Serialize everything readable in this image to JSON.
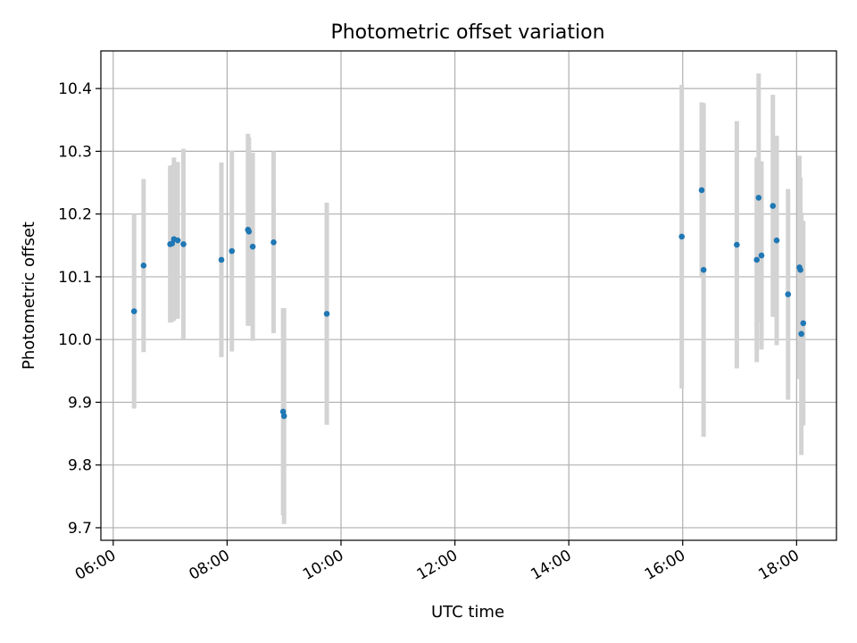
{
  "chart_data": {
    "type": "scatter",
    "title": "Photometric offset variation",
    "xlabel": "UTC time",
    "ylabel": "Photometric offset",
    "x_ticks": [
      "06:00",
      "08:00",
      "10:00",
      "12:00",
      "14:00",
      "16:00",
      "18:00"
    ],
    "y_ticks": [
      "9.7",
      "9.8",
      "9.9",
      "10.0",
      "10.1",
      "10.2",
      "10.3",
      "10.4"
    ],
    "xlim": [
      "05:47",
      "18:42"
    ],
    "ylim": [
      9.68,
      10.46
    ],
    "grid": true,
    "x_tick_rotation": "30deg",
    "colors": {
      "points": "#1f77b4",
      "errorbars": "#d3d3d3",
      "grid": "#b0b0b0"
    },
    "points": [
      {
        "t": "06:22",
        "y": 10.045,
        "err": 0.155
      },
      {
        "t": "06:32",
        "y": 10.118,
        "err": 0.138
      },
      {
        "t": "07:00",
        "y": 10.152,
        "err": 0.125
      },
      {
        "t": "07:02",
        "y": 10.153,
        "err": 0.125
      },
      {
        "t": "07:04",
        "y": 10.16,
        "err": 0.13
      },
      {
        "t": "07:08",
        "y": 10.158,
        "err": 0.125
      },
      {
        "t": "07:14",
        "y": 10.152,
        "err": 0.152
      },
      {
        "t": "07:54",
        "y": 10.127,
        "err": 0.155
      },
      {
        "t": "08:05",
        "y": 10.141,
        "err": 0.16
      },
      {
        "t": "08:22",
        "y": 10.175,
        "err": 0.153
      },
      {
        "t": "08:23",
        "y": 10.172,
        "err": 0.15
      },
      {
        "t": "08:27",
        "y": 10.148,
        "err": 0.15
      },
      {
        "t": "08:49",
        "y": 10.155,
        "err": 0.145
      },
      {
        "t": "08:59",
        "y": 9.885,
        "err": 0.165
      },
      {
        "t": "09:00",
        "y": 9.878,
        "err": 0.172
      },
      {
        "t": "09:45",
        "y": 10.041,
        "err": 0.177
      },
      {
        "t": "15:59",
        "y": 10.164,
        "err": 0.242
      },
      {
        "t": "16:20",
        "y": 10.238,
        "err": 0.14
      },
      {
        "t": "16:22",
        "y": 10.111,
        "err": 0.266
      },
      {
        "t": "16:57",
        "y": 10.151,
        "err": 0.197
      },
      {
        "t": "17:18",
        "y": 10.127,
        "err": 0.163
      },
      {
        "t": "17:20",
        "y": 10.226,
        "err": 0.198
      },
      {
        "t": "17:23",
        "y": 10.134,
        "err": 0.15
      },
      {
        "t": "17:35",
        "y": 10.213,
        "err": 0.177
      },
      {
        "t": "17:39",
        "y": 10.158,
        "err": 0.167
      },
      {
        "t": "17:51",
        "y": 10.072,
        "err": 0.168
      },
      {
        "t": "18:03",
        "y": 10.115,
        "err": 0.178
      },
      {
        "t": "18:04",
        "y": 10.111,
        "err": 0.147
      },
      {
        "t": "18:05",
        "y": 10.009,
        "err": 0.193
      },
      {
        "t": "18:07",
        "y": 10.026,
        "err": 0.163
      }
    ]
  }
}
